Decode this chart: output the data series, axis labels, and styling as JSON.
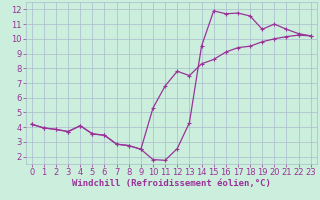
{
  "xlabel": "Windchill (Refroidissement éolien,°C)",
  "bg_color": "#cceedd",
  "grid_color": "#aabbcc",
  "line_color": "#993399",
  "xlim": [
    -0.5,
    23.5
  ],
  "ylim": [
    1.5,
    12.5
  ],
  "xticks": [
    0,
    1,
    2,
    3,
    4,
    5,
    6,
    7,
    8,
    9,
    10,
    11,
    12,
    13,
    14,
    15,
    16,
    17,
    18,
    19,
    20,
    21,
    22,
    23
  ],
  "yticks": [
    2,
    3,
    4,
    5,
    6,
    7,
    8,
    9,
    10,
    11,
    12
  ],
  "line1_x": [
    0,
    1,
    2,
    3,
    4,
    5,
    6,
    7,
    8,
    9,
    10,
    11,
    12,
    13,
    14,
    15,
    16,
    17,
    18,
    19,
    20,
    21,
    22,
    23
  ],
  "line1_y": [
    4.2,
    3.95,
    3.85,
    3.7,
    4.1,
    3.55,
    3.45,
    2.85,
    2.75,
    2.5,
    1.8,
    1.75,
    2.55,
    4.3,
    9.5,
    11.9,
    11.7,
    11.75,
    11.55,
    10.65,
    11.0,
    10.65,
    10.35,
    10.2
  ],
  "line2_x": [
    0,
    1,
    2,
    3,
    4,
    5,
    6,
    7,
    8,
    9,
    10,
    11,
    12,
    13,
    14,
    15,
    16,
    17,
    18,
    19,
    20,
    21,
    22,
    23
  ],
  "line2_y": [
    4.2,
    3.95,
    3.85,
    3.7,
    4.1,
    3.55,
    3.45,
    2.85,
    2.75,
    2.5,
    5.3,
    6.8,
    7.8,
    7.5,
    8.3,
    8.6,
    9.1,
    9.4,
    9.5,
    9.8,
    10.0,
    10.15,
    10.25,
    10.2
  ],
  "xlabel_fontsize": 6.5,
  "tick_fontsize": 6.0
}
